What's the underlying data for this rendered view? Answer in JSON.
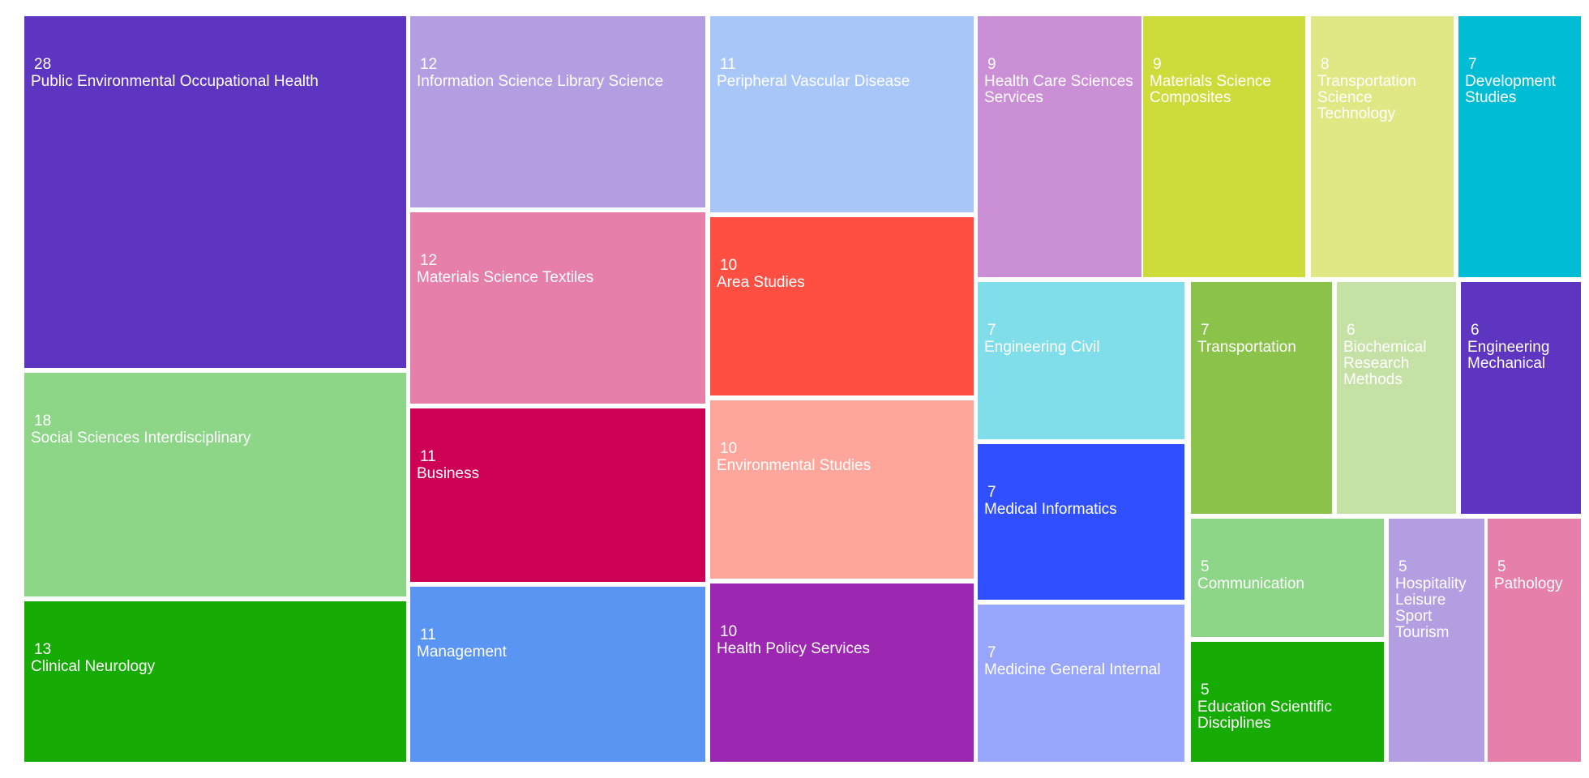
{
  "chart_data": {
    "type": "treemap",
    "title": "",
    "label_color": "#ffffff",
    "items": [
      {
        "label": "Public Environmental Occupational Health",
        "value": 28,
        "color": "#5e35c1"
      },
      {
        "label": "Social Sciences Interdisciplinary",
        "value": 18,
        "color": "#8dd587"
      },
      {
        "label": "Clinical Neurology",
        "value": 13,
        "color": "#16ab05"
      },
      {
        "label": "Information Science Library Science",
        "value": 12,
        "color": "#b39ee1"
      },
      {
        "label": "Materials Science Textiles",
        "value": 12,
        "color": "#e67fa9"
      },
      {
        "label": "Business",
        "value": 11,
        "color": "#cd0055"
      },
      {
        "label": "Management",
        "value": 11,
        "color": "#5b95f3"
      },
      {
        "label": "Peripheral Vascular Disease",
        "value": 11,
        "color": "#a9c6f8"
      },
      {
        "label": "Area Studies",
        "value": 10,
        "color": "#fe4f42"
      },
      {
        "label": "Environmental Studies",
        "value": 10,
        "color": "#ffa69c"
      },
      {
        "label": "Health Policy Services",
        "value": 10,
        "color": "#9c27b1"
      },
      {
        "label": "Health Care Sciences Services",
        "value": 9,
        "color": "#ca8fd5"
      },
      {
        "label": "Materials Science Composites",
        "value": 9,
        "color": "#cddc3a"
      },
      {
        "label": "Transportation Science Technology",
        "value": 8,
        "color": "#e0e886"
      },
      {
        "label": "Development Studies",
        "value": 7,
        "color": "#00bcd4"
      },
      {
        "label": "Engineering Civil",
        "value": 7,
        "color": "#80deea"
      },
      {
        "label": "Medical Informatics",
        "value": 7,
        "color": "#304ffe"
      },
      {
        "label": "Medicine General Internal",
        "value": 7,
        "color": "#98a6fd"
      },
      {
        "label": "Transportation",
        "value": 7,
        "color": "#8bc34a"
      },
      {
        "label": "Biochemical Research Methods",
        "value": 6,
        "color": "#c5e1a5"
      },
      {
        "label": "Engineering Mechanical",
        "value": 6,
        "color": "#5e35c1"
      },
      {
        "label": "Communication",
        "value": 5,
        "color": "#8dd587"
      },
      {
        "label": "Education Scientific Disciplines",
        "value": 5,
        "color": "#16ab05"
      },
      {
        "label": "Hospitality Leisure Sport Tourism",
        "value": 5,
        "color": "#b39ee1"
      },
      {
        "label": "Pathology",
        "value": 5,
        "color": "#e67fa9"
      }
    ]
  }
}
